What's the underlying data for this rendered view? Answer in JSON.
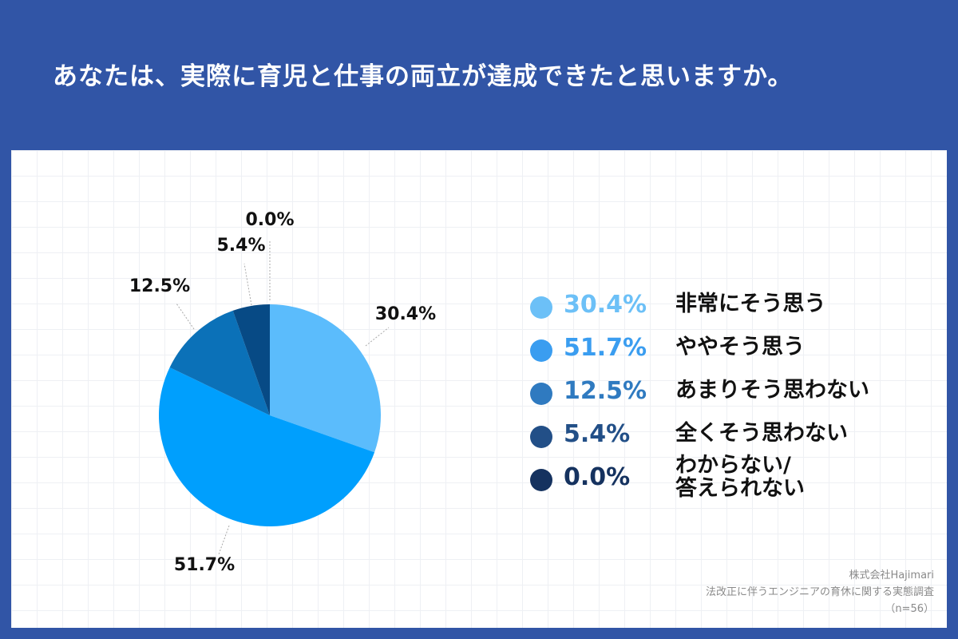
{
  "title": "あなたは、実際に育児と仕事の両立が達成できたと思いますか。",
  "chart_data": {
    "type": "pie",
    "title": "あなたは、実際に育児と仕事の両立が達成できたと思いますか。",
    "slices": [
      {
        "label": "非常にそう思う",
        "value": 30.4,
        "value_label": "30.4%",
        "color": "#5bbcfc",
        "legend_color": "#6cc0f7"
      },
      {
        "label": "ややそう思う",
        "value": 51.7,
        "value_label": "51.7%",
        "color": "#009ffd",
        "legend_color": "#3a9df0"
      },
      {
        "label": "あまりそう思わない",
        "value": 12.5,
        "value_label": "12.5%",
        "color": "#0b71b8",
        "legend_color": "#2f7ac0"
      },
      {
        "label": "全くそう思わない",
        "value": 5.4,
        "value_label": "5.4%",
        "color": "#074a85",
        "legend_color": "#224f87"
      },
      {
        "label_lines": [
          "わからない/",
          "答えられない"
        ],
        "value": 0.0,
        "value_label": "0.0%",
        "color": "#0b2f5e",
        "legend_color": "#15325f"
      }
    ],
    "legend_position": "right"
  },
  "source": {
    "company": "株式会社Hajimari",
    "survey": "法改正に伴うエンジニアの育休に関する実態調査",
    "n": "（n=56）"
  }
}
